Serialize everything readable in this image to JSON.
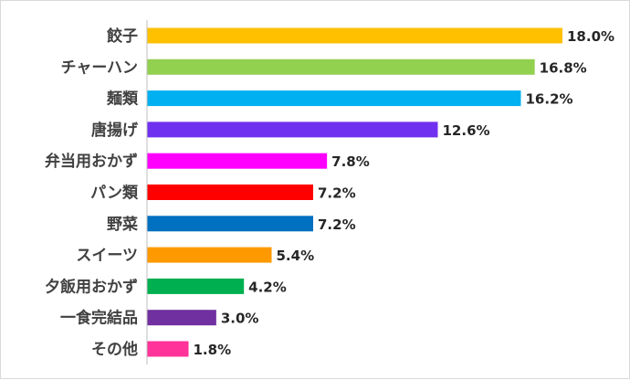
{
  "chart_data": {
    "type": "bar",
    "orientation": "horizontal",
    "categories": [
      "餃子",
      "チャーハン",
      "麺類",
      "唐揚げ",
      "弁当用おかず",
      "パン類",
      "野菜",
      "スイーツ",
      "夕飯用おかず",
      "一食完結品",
      "その他"
    ],
    "values": [
      18.0,
      16.8,
      16.2,
      12.6,
      7.8,
      7.2,
      7.2,
      5.4,
      4.2,
      3.0,
      1.8
    ],
    "value_labels": [
      "18.0%",
      "16.8%",
      "16.2%",
      "12.6%",
      "7.8%",
      "7.2%",
      "7.2%",
      "5.4%",
      "4.2%",
      "3.0%",
      "1.8%"
    ],
    "colors": [
      "#FFC000",
      "#92D050",
      "#00B0F0",
      "#7030F0",
      "#FF00FF",
      "#FF0000",
      "#0070C0",
      "#FF9900",
      "#00B050",
      "#7030A0",
      "#FF3399"
    ],
    "xlim": [
      0,
      20
    ],
    "unit": "%",
    "grid": false,
    "legend": "none"
  }
}
